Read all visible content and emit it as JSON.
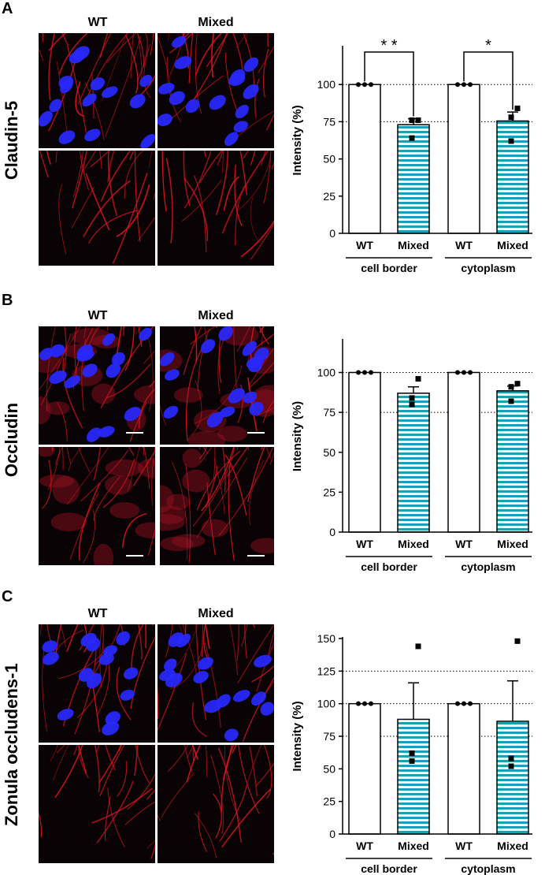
{
  "panels": [
    {
      "letter": "A",
      "stain": "Claudin-5",
      "col_labels": [
        "WT",
        "Mixed"
      ],
      "scale_bars": false
    },
    {
      "letter": "B",
      "stain": "Occludin",
      "col_labels": [
        "WT",
        "Mixed"
      ],
      "scale_bars": true
    },
    {
      "letter": "C",
      "stain": "Zonula occludens-1",
      "col_labels": [
        "WT",
        "Mixed"
      ],
      "scale_bars": false
    }
  ],
  "colors": {
    "membrane_red": "#e0141e",
    "nucleus_blue": "#2828ff",
    "bar_stripe": "#1a9fb5",
    "dotted_ref": "#000000"
  },
  "chart_data": [
    {
      "type": "bar",
      "ylabel": "Intensity (%)",
      "ylim": [
        0,
        125
      ],
      "yticks": [
        0,
        25,
        50,
        75,
        100
      ],
      "ref_lines": [
        75,
        100
      ],
      "categories": [
        "WT",
        "Mixed",
        "WT",
        "Mixed"
      ],
      "groups": [
        "cell border",
        "cytoplasm"
      ],
      "values": [
        100,
        73,
        100,
        75.5
      ],
      "errors": [
        0,
        4,
        0,
        6
      ],
      "points": [
        [
          100,
          100,
          100
        ],
        [
          76,
          76,
          64
        ],
        [
          100,
          100,
          100
        ],
        [
          84,
          78,
          62
        ]
      ],
      "significance": [
        {
          "label": "* *",
          "from": 0,
          "to": 1
        },
        {
          "label": "*",
          "from": 2,
          "to": 3
        }
      ]
    },
    {
      "type": "bar",
      "ylabel": "Intensity (%)",
      "ylim": [
        0,
        120
      ],
      "yticks": [
        0,
        25,
        50,
        75,
        100
      ],
      "ref_lines": [
        75,
        100
      ],
      "categories": [
        "WT",
        "Mixed",
        "WT",
        "Mixed"
      ],
      "groups": [
        "cell border",
        "cytoplasm"
      ],
      "values": [
        100,
        87,
        100,
        88.5
      ],
      "errors": [
        0,
        4,
        0,
        3
      ],
      "points": [
        [
          100,
          100,
          100
        ],
        [
          96,
          84,
          80
        ],
        [
          100,
          100,
          100
        ],
        [
          93,
          91,
          82
        ]
      ],
      "significance": []
    },
    {
      "type": "bar",
      "ylabel": "Intensity (%)",
      "ylim": [
        0,
        150
      ],
      "yticks": [
        0,
        25,
        50,
        75,
        100,
        125,
        150
      ],
      "ref_lines": [
        75,
        100,
        125
      ],
      "categories": [
        "WT",
        "Mixed",
        "WT",
        "Mixed"
      ],
      "groups": [
        "cell border",
        "cytoplasm"
      ],
      "values": [
        100,
        88,
        100,
        86.5
      ],
      "errors": [
        0,
        28,
        0,
        31
      ],
      "points": [
        [
          100,
          100,
          100
        ],
        [
          144,
          62,
          56
        ],
        [
          100,
          100,
          100
        ],
        [
          148,
          58,
          52
        ]
      ],
      "significance": []
    }
  ]
}
